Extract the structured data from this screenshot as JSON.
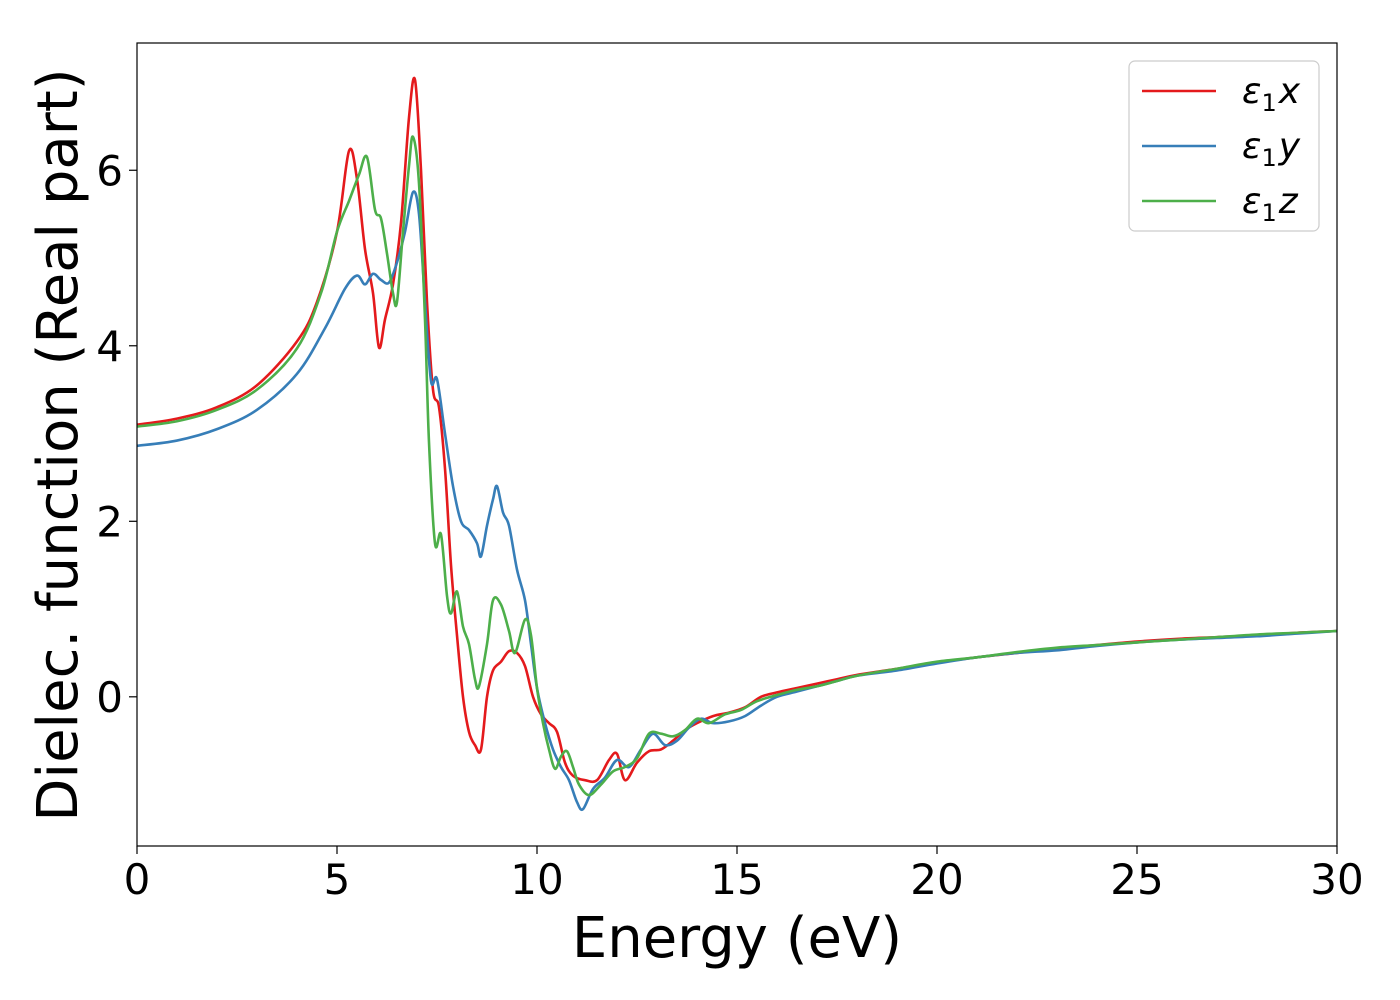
{
  "chart_data": {
    "type": "line",
    "xlabel": "Energy (eV)",
    "ylabel": "Dielec. function (Real part)",
    "xlim": [
      0,
      30
    ],
    "ylim": [
      -1.7,
      7.45
    ],
    "xticks": [
      0,
      5,
      10,
      15,
      20,
      25,
      30
    ],
    "xtick_labels": [
      "0",
      "5",
      "10",
      "15",
      "20",
      "25",
      "30"
    ],
    "yticks": [
      0,
      2,
      4,
      6
    ],
    "ytick_labels": [
      "0",
      "2",
      "4",
      "6"
    ],
    "grid": false,
    "legend_position": "top-right",
    "series": [
      {
        "name": "ε1x",
        "legend_main": "ε",
        "legend_sub": "1",
        "legend_suffix": "x",
        "color": "#e41a1c",
        "points": [
          [
            0,
            3.1
          ],
          [
            1,
            3.17
          ],
          [
            2,
            3.3
          ],
          [
            3,
            3.55
          ],
          [
            4,
            4.05
          ],
          [
            4.5,
            4.5
          ],
          [
            5,
            5.3
          ],
          [
            5.3,
            6.22
          ],
          [
            5.5,
            5.9
          ],
          [
            5.7,
            5.1
          ],
          [
            5.9,
            4.6
          ],
          [
            6.05,
            3.98
          ],
          [
            6.2,
            4.3
          ],
          [
            6.4,
            4.7
          ],
          [
            6.6,
            5.4
          ],
          [
            6.8,
            6.6
          ],
          [
            6.95,
            7.03
          ],
          [
            7.1,
            6.0
          ],
          [
            7.25,
            4.5
          ],
          [
            7.4,
            3.5
          ],
          [
            7.55,
            3.3
          ],
          [
            7.7,
            2.6
          ],
          [
            7.85,
            1.5
          ],
          [
            8.0,
            0.7
          ],
          [
            8.15,
            0.0
          ],
          [
            8.3,
            -0.4
          ],
          [
            8.45,
            -0.55
          ],
          [
            8.6,
            -0.6
          ],
          [
            8.75,
            0.0
          ],
          [
            8.9,
            0.3
          ],
          [
            9.1,
            0.4
          ],
          [
            9.3,
            0.52
          ],
          [
            9.5,
            0.5
          ],
          [
            9.7,
            0.35
          ],
          [
            9.9,
            0.0
          ],
          [
            10.1,
            -0.2
          ],
          [
            10.3,
            -0.3
          ],
          [
            10.5,
            -0.4
          ],
          [
            10.7,
            -0.75
          ],
          [
            10.9,
            -0.9
          ],
          [
            11.2,
            -0.95
          ],
          [
            11.5,
            -0.95
          ],
          [
            11.8,
            -0.72
          ],
          [
            12.0,
            -0.65
          ],
          [
            12.2,
            -0.95
          ],
          [
            12.5,
            -0.75
          ],
          [
            12.8,
            -0.62
          ],
          [
            13.1,
            -0.6
          ],
          [
            13.4,
            -0.5
          ],
          [
            13.7,
            -0.38
          ],
          [
            14.0,
            -0.3
          ],
          [
            14.4,
            -0.22
          ],
          [
            14.8,
            -0.18
          ],
          [
            15.2,
            -0.12
          ],
          [
            15.6,
            0.0
          ],
          [
            16.0,
            0.05
          ],
          [
            16.5,
            0.1
          ],
          [
            17,
            0.15
          ],
          [
            17.5,
            0.2
          ],
          [
            18,
            0.25
          ],
          [
            19,
            0.32
          ],
          [
            20,
            0.39
          ],
          [
            21,
            0.45
          ],
          [
            22,
            0.5
          ],
          [
            23,
            0.55
          ],
          [
            24,
            0.59
          ],
          [
            25,
            0.63
          ],
          [
            26,
            0.66
          ],
          [
            27,
            0.68
          ],
          [
            28,
            0.7
          ],
          [
            29,
            0.73
          ],
          [
            30,
            0.75
          ]
        ]
      },
      {
        "name": "ε1y",
        "legend_main": "ε",
        "legend_sub": "1",
        "legend_suffix": "y",
        "color": "#377eb8",
        "points": [
          [
            0,
            2.86
          ],
          [
            1,
            2.92
          ],
          [
            2,
            3.05
          ],
          [
            3,
            3.27
          ],
          [
            4,
            3.68
          ],
          [
            4.7,
            4.2
          ],
          [
            5.2,
            4.65
          ],
          [
            5.5,
            4.8
          ],
          [
            5.7,
            4.7
          ],
          [
            5.9,
            4.82
          ],
          [
            6.1,
            4.75
          ],
          [
            6.3,
            4.72
          ],
          [
            6.5,
            4.95
          ],
          [
            6.7,
            5.3
          ],
          [
            6.9,
            5.75
          ],
          [
            7.05,
            5.5
          ],
          [
            7.2,
            4.5
          ],
          [
            7.35,
            3.6
          ],
          [
            7.5,
            3.62
          ],
          [
            7.7,
            3.0
          ],
          [
            7.9,
            2.4
          ],
          [
            8.1,
            2.0
          ],
          [
            8.3,
            1.9
          ],
          [
            8.5,
            1.75
          ],
          [
            8.6,
            1.6
          ],
          [
            8.75,
            1.95
          ],
          [
            8.9,
            2.25
          ],
          [
            9.0,
            2.4
          ],
          [
            9.15,
            2.1
          ],
          [
            9.3,
            1.95
          ],
          [
            9.5,
            1.45
          ],
          [
            9.7,
            1.1
          ],
          [
            9.85,
            0.6
          ],
          [
            10.0,
            0.1
          ],
          [
            10.2,
            -0.3
          ],
          [
            10.4,
            -0.6
          ],
          [
            10.6,
            -0.8
          ],
          [
            10.8,
            -0.95
          ],
          [
            11.0,
            -1.2
          ],
          [
            11.15,
            -1.28
          ],
          [
            11.4,
            -1.05
          ],
          [
            11.7,
            -0.92
          ],
          [
            12.0,
            -0.72
          ],
          [
            12.3,
            -0.8
          ],
          [
            12.6,
            -0.6
          ],
          [
            12.9,
            -0.42
          ],
          [
            13.2,
            -0.55
          ],
          [
            13.5,
            -0.5
          ],
          [
            13.8,
            -0.35
          ],
          [
            14.1,
            -0.25
          ],
          [
            14.4,
            -0.3
          ],
          [
            14.8,
            -0.28
          ],
          [
            15.2,
            -0.22
          ],
          [
            15.6,
            -0.1
          ],
          [
            16.0,
            0.0
          ],
          [
            16.5,
            0.06
          ],
          [
            17,
            0.12
          ],
          [
            17.5,
            0.18
          ],
          [
            18,
            0.24
          ],
          [
            19,
            0.3
          ],
          [
            20,
            0.38
          ],
          [
            21,
            0.45
          ],
          [
            22,
            0.5
          ],
          [
            23,
            0.53
          ],
          [
            24,
            0.58
          ],
          [
            25,
            0.62
          ],
          [
            26,
            0.65
          ],
          [
            27,
            0.67
          ],
          [
            28,
            0.69
          ],
          [
            29,
            0.72
          ],
          [
            30,
            0.75
          ]
        ]
      },
      {
        "name": "ε1z",
        "legend_main": "ε",
        "legend_sub": "1",
        "legend_suffix": "z",
        "color": "#4daf4a",
        "points": [
          [
            0,
            3.08
          ],
          [
            1,
            3.14
          ],
          [
            2,
            3.27
          ],
          [
            3,
            3.5
          ],
          [
            4,
            3.97
          ],
          [
            4.6,
            4.6
          ],
          [
            5.0,
            5.3
          ],
          [
            5.3,
            5.65
          ],
          [
            5.55,
            5.95
          ],
          [
            5.75,
            6.15
          ],
          [
            5.95,
            5.55
          ],
          [
            6.1,
            5.45
          ],
          [
            6.25,
            5.05
          ],
          [
            6.4,
            4.6
          ],
          [
            6.5,
            4.5
          ],
          [
            6.65,
            5.3
          ],
          [
            6.8,
            6.05
          ],
          [
            6.9,
            6.38
          ],
          [
            7.05,
            5.85
          ],
          [
            7.2,
            4.3
          ],
          [
            7.3,
            2.9
          ],
          [
            7.45,
            1.75
          ],
          [
            7.6,
            1.85
          ],
          [
            7.75,
            1.15
          ],
          [
            7.85,
            0.95
          ],
          [
            8.0,
            1.2
          ],
          [
            8.15,
            0.8
          ],
          [
            8.3,
            0.6
          ],
          [
            8.45,
            0.2
          ],
          [
            8.55,
            0.12
          ],
          [
            8.75,
            0.6
          ],
          [
            8.9,
            1.1
          ],
          [
            9.1,
            1.05
          ],
          [
            9.3,
            0.75
          ],
          [
            9.45,
            0.5
          ],
          [
            9.7,
            0.88
          ],
          [
            9.85,
            0.7
          ],
          [
            10.0,
            0.1
          ],
          [
            10.15,
            -0.3
          ],
          [
            10.3,
            -0.6
          ],
          [
            10.45,
            -0.82
          ],
          [
            10.6,
            -0.68
          ],
          [
            10.75,
            -0.62
          ],
          [
            10.9,
            -0.8
          ],
          [
            11.05,
            -1.0
          ],
          [
            11.3,
            -1.12
          ],
          [
            11.6,
            -1.0
          ],
          [
            11.9,
            -0.85
          ],
          [
            12.2,
            -0.8
          ],
          [
            12.5,
            -0.7
          ],
          [
            12.8,
            -0.42
          ],
          [
            13.1,
            -0.42
          ],
          [
            13.4,
            -0.45
          ],
          [
            13.7,
            -0.38
          ],
          [
            14.0,
            -0.25
          ],
          [
            14.3,
            -0.3
          ],
          [
            14.7,
            -0.2
          ],
          [
            15.1,
            -0.15
          ],
          [
            15.5,
            -0.05
          ],
          [
            16.0,
            0.02
          ],
          [
            16.5,
            0.08
          ],
          [
            17,
            0.12
          ],
          [
            17.5,
            0.18
          ],
          [
            18,
            0.24
          ],
          [
            19,
            0.32
          ],
          [
            20,
            0.4
          ],
          [
            21,
            0.45
          ],
          [
            22,
            0.51
          ],
          [
            23,
            0.56
          ],
          [
            24,
            0.59
          ],
          [
            25,
            0.62
          ],
          [
            26,
            0.65
          ],
          [
            27,
            0.68
          ],
          [
            28,
            0.71
          ],
          [
            29,
            0.73
          ],
          [
            30,
            0.75
          ]
        ]
      }
    ]
  }
}
